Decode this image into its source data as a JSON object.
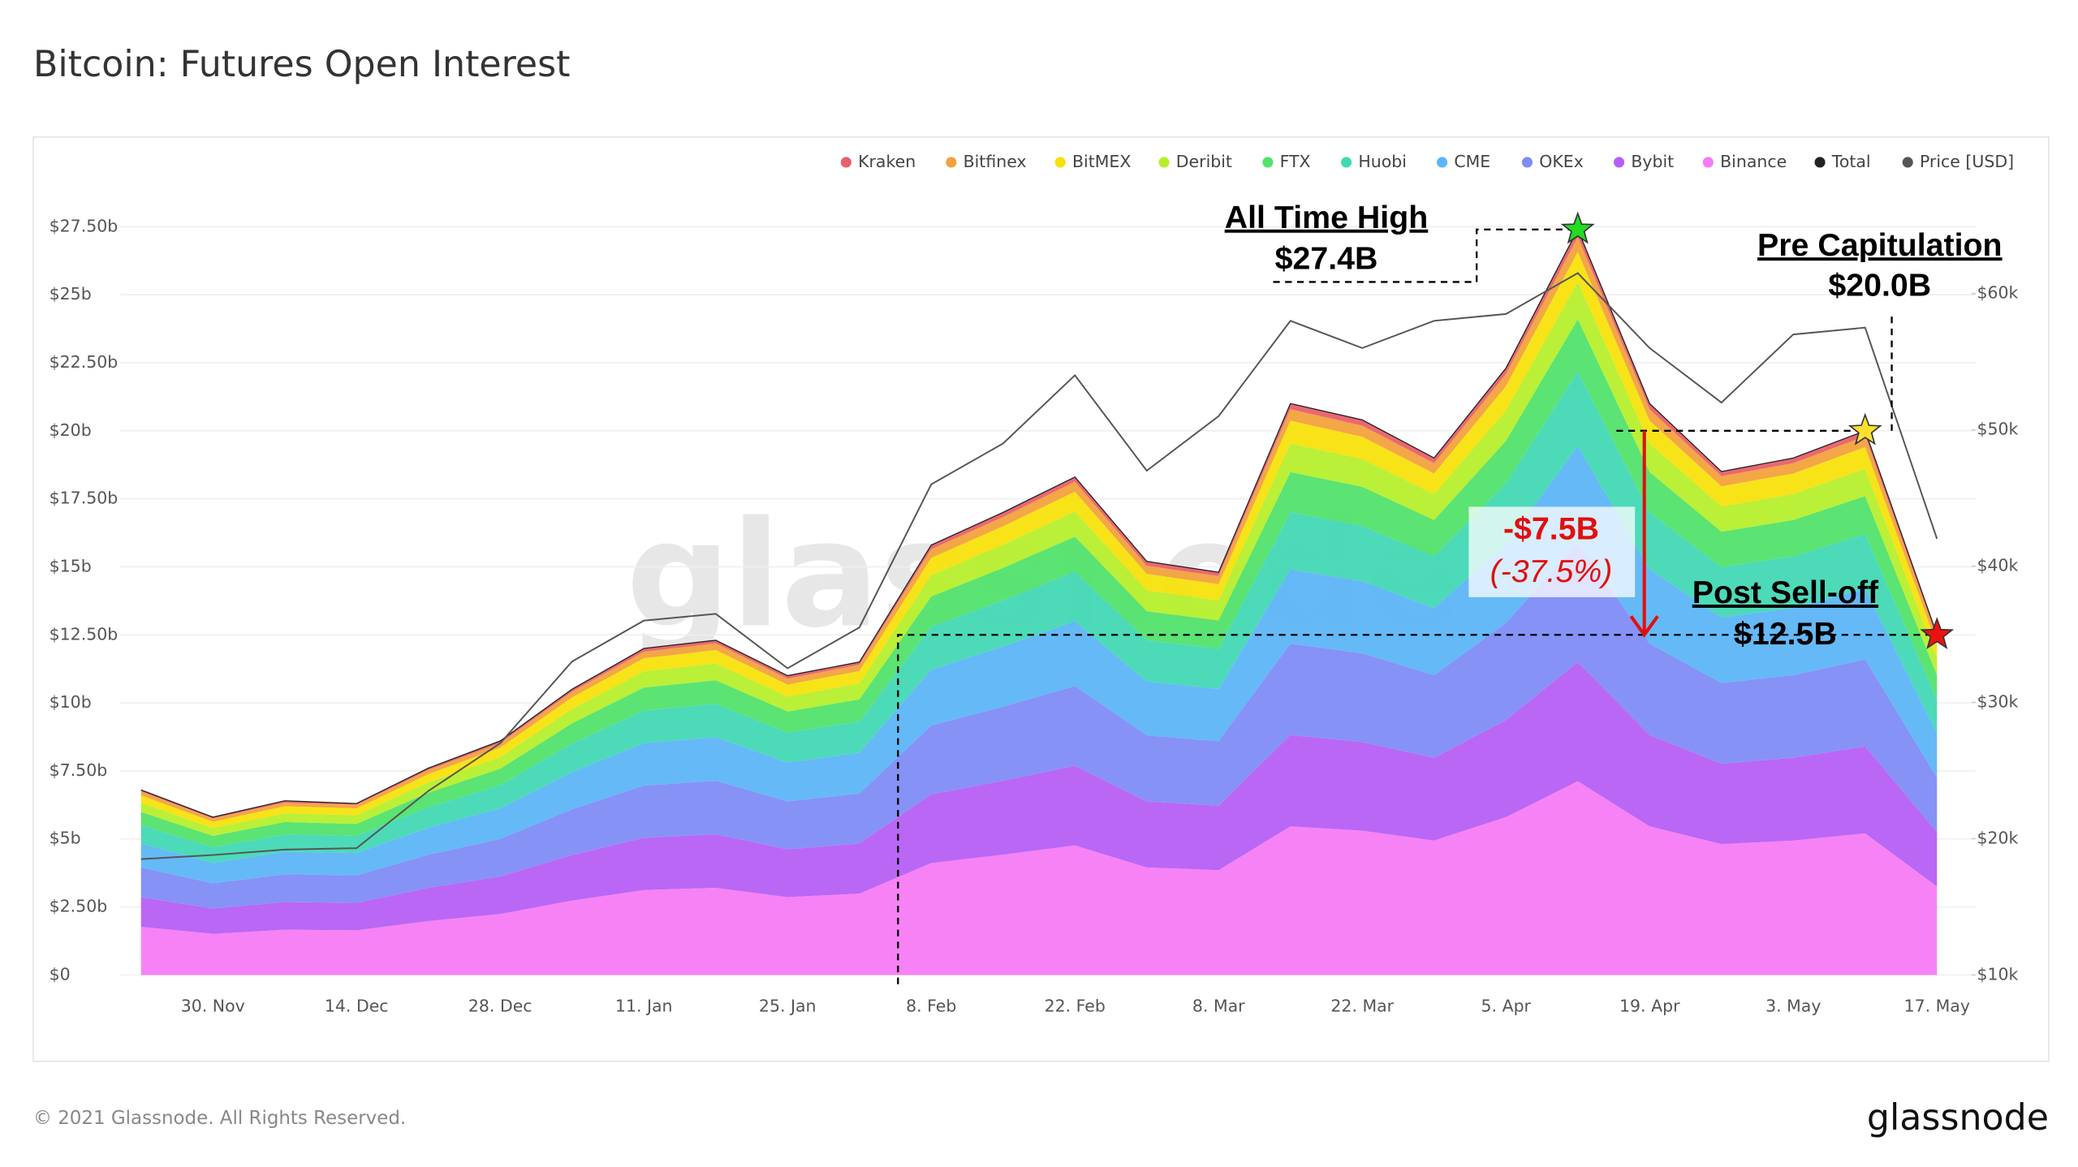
{
  "title": "Bitcoin: Futures Open Interest",
  "footer": "© 2021 Glassnode. All Rights Reserved.",
  "logo": "glassnode",
  "chart_data": {
    "type": "area",
    "stacked": true,
    "watermark": "glassnode",
    "categories": [
      null,
      "30. Nov",
      null,
      "14. Dec",
      null,
      "28. Dec",
      null,
      "11. Jan",
      null,
      "25. Jan",
      null,
      "8. Feb",
      null,
      "22. Feb",
      null,
      "8. Mar",
      null,
      "22. Mar",
      null,
      "5. Apr",
      null,
      "19. Apr",
      null,
      "3. May",
      null,
      "17. May"
    ],
    "ylim": [
      0,
      28.5
    ],
    "yticks": [
      {
        "value": 0,
        "label": "$0"
      },
      {
        "value": 2.5,
        "label": "$2.50b"
      },
      {
        "value": 5,
        "label": "$5b"
      },
      {
        "value": 7.5,
        "label": "$7.50b"
      },
      {
        "value": 10,
        "label": "$10b"
      },
      {
        "value": 12.5,
        "label": "$12.50b"
      },
      {
        "value": 15,
        "label": "$15b"
      },
      {
        "value": 17.5,
        "label": "$17.50b"
      },
      {
        "value": 20,
        "label": "$20b"
      },
      {
        "value": 22.5,
        "label": "$22.50b"
      },
      {
        "value": 25,
        "label": "$25b"
      },
      {
        "value": 27.5,
        "label": "$27.50b"
      }
    ],
    "y2lim": [
      10000,
      66900
    ],
    "y2ticks": [
      {
        "value": 10000,
        "label": "$10k"
      },
      {
        "value": 20000,
        "label": "$20k"
      },
      {
        "value": 30000,
        "label": "$30k"
      },
      {
        "value": 40000,
        "label": "$40k"
      },
      {
        "value": 50000,
        "label": "$50k"
      },
      {
        "value": 60000,
        "label": "$60k"
      }
    ],
    "grid": true,
    "series": [
      {
        "name": "Kraken",
        "color": "#e8606a",
        "values": [
          0.07,
          0.06,
          0.06,
          0.06,
          0.08,
          0.09,
          0.11,
          0.12,
          0.12,
          0.11,
          0.12,
          0.16,
          0.17,
          0.18,
          0.15,
          0.15,
          0.21,
          0.2,
          0.19,
          0.22,
          0.27,
          0.21,
          0.19,
          0.19,
          0.2,
          0.13
        ]
      },
      {
        "name": "Bitfinex",
        "color": "#f2a23c",
        "values": [
          0.14,
          0.12,
          0.13,
          0.13,
          0.15,
          0.17,
          0.21,
          0.24,
          0.25,
          0.22,
          0.23,
          0.32,
          0.34,
          0.37,
          0.3,
          0.3,
          0.42,
          0.41,
          0.38,
          0.45,
          0.55,
          0.42,
          0.37,
          0.38,
          0.4,
          0.25
        ]
      },
      {
        "name": "BitMEX",
        "color": "#f7e10c",
        "values": [
          0.27,
          0.23,
          0.26,
          0.25,
          0.3,
          0.34,
          0.42,
          0.48,
          0.49,
          0.44,
          0.46,
          0.63,
          0.68,
          0.73,
          0.61,
          0.59,
          0.84,
          0.82,
          0.76,
          0.89,
          1.1,
          0.84,
          0.74,
          0.76,
          0.8,
          0.5
        ]
      },
      {
        "name": "Deribit",
        "color": "#b6ef2c",
        "values": [
          0.34,
          0.29,
          0.32,
          0.32,
          0.38,
          0.43,
          0.53,
          0.6,
          0.62,
          0.55,
          0.58,
          0.79,
          0.85,
          0.92,
          0.76,
          0.74,
          1.05,
          1.02,
          0.95,
          1.12,
          1.37,
          1.05,
          0.93,
          0.95,
          1.0,
          0.63
        ]
      },
      {
        "name": "FTX",
        "color": "#52e26c",
        "values": [
          0.48,
          0.41,
          0.45,
          0.44,
          0.53,
          0.6,
          0.74,
          0.84,
          0.86,
          0.77,
          0.81,
          1.11,
          1.19,
          1.28,
          1.06,
          1.04,
          1.47,
          1.43,
          1.33,
          1.56,
          1.92,
          1.47,
          1.3,
          1.33,
          1.4,
          0.88
        ]
      },
      {
        "name": "Huobi",
        "color": "#43d8b4",
        "values": [
          0.68,
          0.58,
          0.64,
          0.63,
          0.76,
          0.86,
          1.05,
          1.2,
          1.23,
          1.1,
          1.15,
          1.58,
          1.7,
          1.83,
          1.52,
          1.48,
          2.1,
          2.04,
          1.9,
          2.23,
          2.74,
          2.1,
          1.85,
          1.9,
          2.0,
          1.25
        ]
      },
      {
        "name": "CME",
        "color": "#5db5f7",
        "values": [
          0.88,
          0.75,
          0.83,
          0.82,
          0.99,
          1.12,
          1.37,
          1.56,
          1.6,
          1.43,
          1.5,
          2.05,
          2.21,
          2.38,
          1.98,
          1.92,
          2.73,
          2.65,
          2.47,
          2.9,
          3.56,
          2.73,
          2.41,
          2.47,
          2.6,
          1.63
        ]
      },
      {
        "name": "OKEx",
        "color": "#7f8cf6",
        "values": [
          1.09,
          0.93,
          1.02,
          1.01,
          1.22,
          1.38,
          1.68,
          1.92,
          1.97,
          1.76,
          1.84,
          2.53,
          2.72,
          2.93,
          2.43,
          2.37,
          3.36,
          3.26,
          3.04,
          3.57,
          4.38,
          3.36,
          2.96,
          3.04,
          3.2,
          2.0
        ]
      },
      {
        "name": "Bybit",
        "color": "#b65ff4",
        "values": [
          1.09,
          0.93,
          1.02,
          1.01,
          1.22,
          1.38,
          1.68,
          1.92,
          1.97,
          1.76,
          1.84,
          2.53,
          2.72,
          2.93,
          2.43,
          2.37,
          3.36,
          3.26,
          3.04,
          3.57,
          4.38,
          3.36,
          2.96,
          3.04,
          3.2,
          2.0
        ]
      },
      {
        "name": "Binance",
        "color": "#f77bf5",
        "values": [
          1.77,
          1.51,
          1.66,
          1.64,
          1.98,
          2.24,
          2.73,
          3.12,
          3.2,
          2.86,
          2.99,
          4.11,
          4.42,
          4.76,
          3.95,
          3.85,
          5.46,
          5.3,
          4.94,
          5.8,
          7.12,
          5.46,
          4.81,
          4.94,
          5.2,
          3.25
        ]
      },
      {
        "name": "Total",
        "color": "#222222",
        "type": "line",
        "values": [
          6.8,
          5.8,
          6.4,
          6.3,
          7.6,
          8.6,
          10.5,
          12.0,
          12.3,
          11.0,
          11.5,
          15.8,
          17.0,
          18.3,
          15.2,
          14.8,
          21.0,
          20.4,
          19.0,
          22.3,
          27.4,
          21.0,
          18.5,
          19.0,
          20.0,
          12.5
        ]
      },
      {
        "name": "Price [USD]",
        "color": "#555555",
        "type": "line",
        "axis": "y2",
        "values": [
          18500,
          18800,
          19200,
          19300,
          23500,
          27000,
          33000,
          36000,
          36500,
          32500,
          35500,
          46000,
          49000,
          54000,
          47000,
          51000,
          58000,
          56000,
          58000,
          58500,
          61500,
          56000,
          52000,
          57000,
          57500,
          42000
        ]
      }
    ],
    "annotations": {
      "ath_label": "All Time High",
      "ath_value": "$27.4B",
      "pre_label": "Pre Capitulation",
      "pre_value": "$20.0B",
      "post_label": "Post Sell-off",
      "post_value": "$12.5B",
      "drop_value": "-$7.5B",
      "drop_pct": "(-37.5%)"
    }
  }
}
